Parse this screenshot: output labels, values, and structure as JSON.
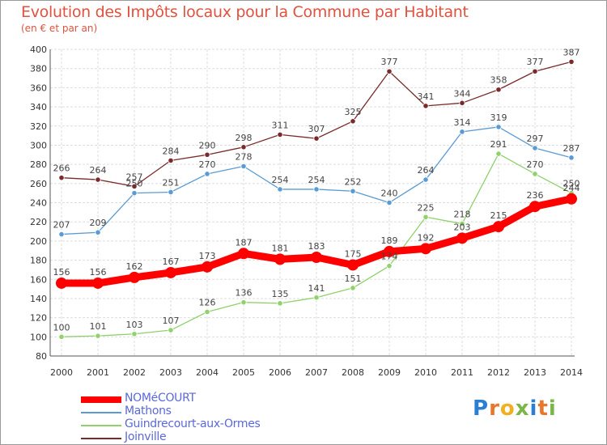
{
  "title": "Evolution des Impôts locaux pour la Commune par Habitant",
  "subtitle": "(en € et par an)",
  "logo": {
    "letters": [
      "P",
      "r",
      "o",
      "x",
      "i",
      "t",
      "i"
    ],
    "colors": [
      "#2a7fd4",
      "#e8762b",
      "#f0b020",
      "#7ab648",
      "#2a7fd4",
      "#e8762b",
      "#7ab648"
    ]
  },
  "chart_data": {
    "type": "line",
    "categories": [
      "2000",
      "2001",
      "2002",
      "2003",
      "2004",
      "2005",
      "2006",
      "2007",
      "2008",
      "2009",
      "2010",
      "2011",
      "2012",
      "2013",
      "2014"
    ],
    "ylim": [
      80,
      400
    ],
    "yticks": [
      80,
      100,
      120,
      140,
      160,
      180,
      200,
      220,
      240,
      260,
      280,
      300,
      320,
      340,
      360,
      380,
      400
    ],
    "grid": true,
    "legend_position": "bottom-left",
    "series": [
      {
        "name": "NOMéCOURT",
        "color": "#ff0000",
        "values": [
          156,
          156,
          162,
          167,
          173,
          187,
          181,
          183,
          175,
          189,
          192,
          203,
          215,
          236,
          244
        ]
      },
      {
        "name": "Mathons",
        "color": "#5a9bd5",
        "values": [
          207,
          209,
          250,
          251,
          270,
          278,
          254,
          254,
          252,
          240,
          264,
          314,
          319,
          297,
          287
        ]
      },
      {
        "name": "Guindrecourt-aux-Ormes",
        "color": "#8fd16a",
        "values": [
          100,
          101,
          103,
          107,
          126,
          136,
          135,
          141,
          151,
          174,
          225,
          218,
          291,
          270,
          250
        ]
      },
      {
        "name": "Joinville",
        "color": "#7a2a2a",
        "values": [
          266,
          264,
          257,
          284,
          290,
          298,
          311,
          307,
          325,
          377,
          341,
          344,
          358,
          377,
          387
        ]
      }
    ]
  }
}
